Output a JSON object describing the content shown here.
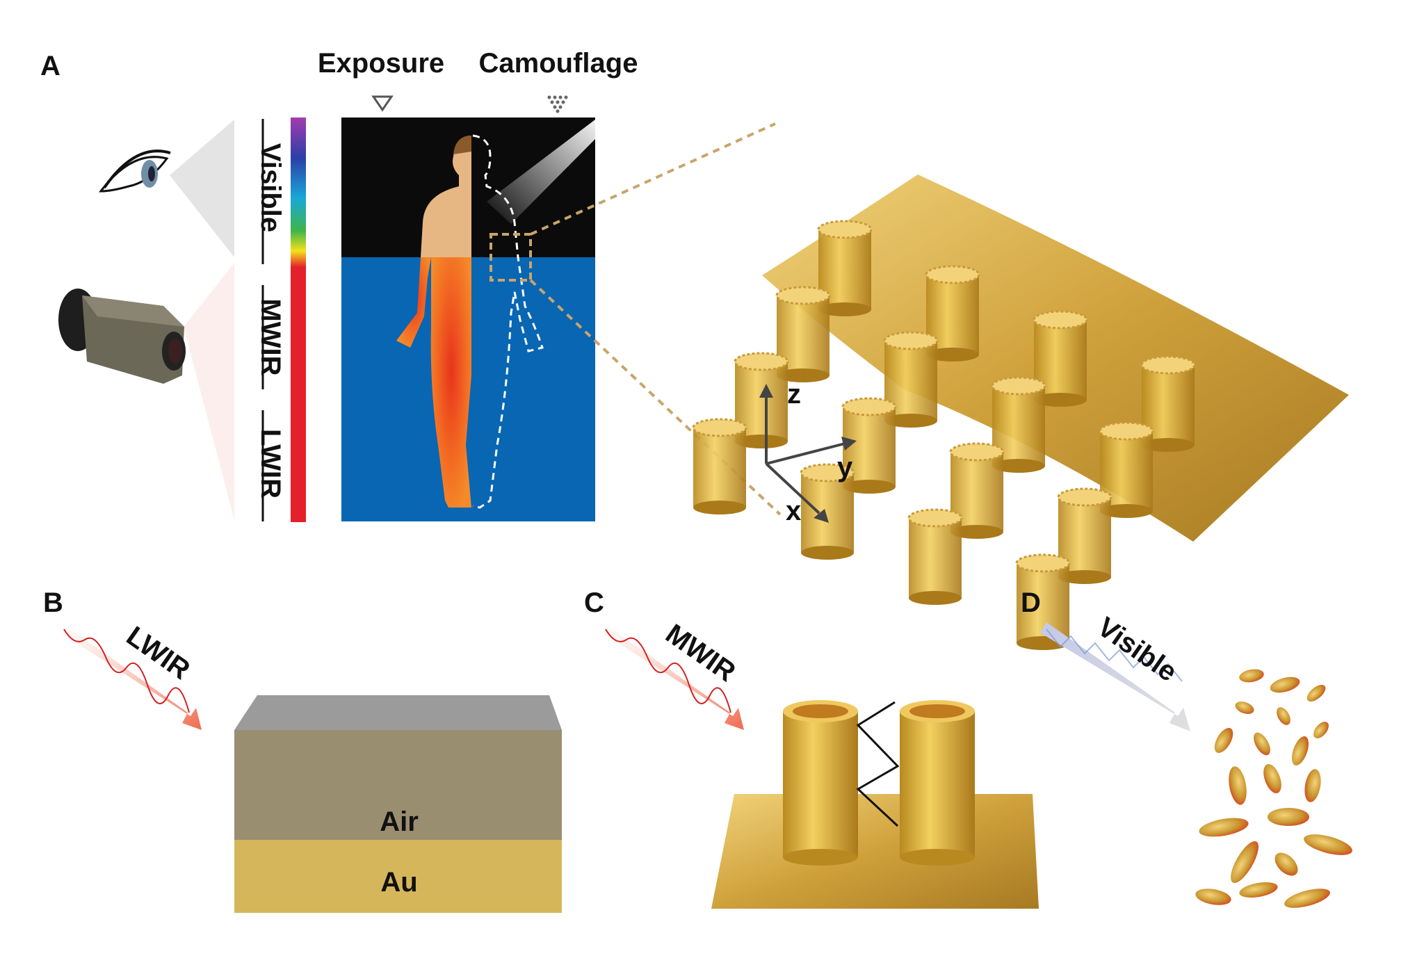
{
  "panels": {
    "a": {
      "label": "A",
      "exposure": "Exposure",
      "camouflage": "Camouflage",
      "bands": [
        "Visible",
        "MWIR",
        "LWIR"
      ]
    },
    "b": {
      "label": "B",
      "radiation": "LWIR",
      "layer_top": "Air",
      "layer_bottom": "Au"
    },
    "c": {
      "label": "C",
      "radiation": "MWIR"
    },
    "d": {
      "label": "D",
      "radiation": "Visible"
    },
    "axes": {
      "z": "z",
      "y": "y",
      "x": "x"
    }
  },
  "colors": {
    "background_visible": "#0b0b0b",
    "background_ir": "#0866b3",
    "gold": "#d4a640",
    "thermal_body": "#f05a1e",
    "spectrum_ir": "#e4202b"
  }
}
